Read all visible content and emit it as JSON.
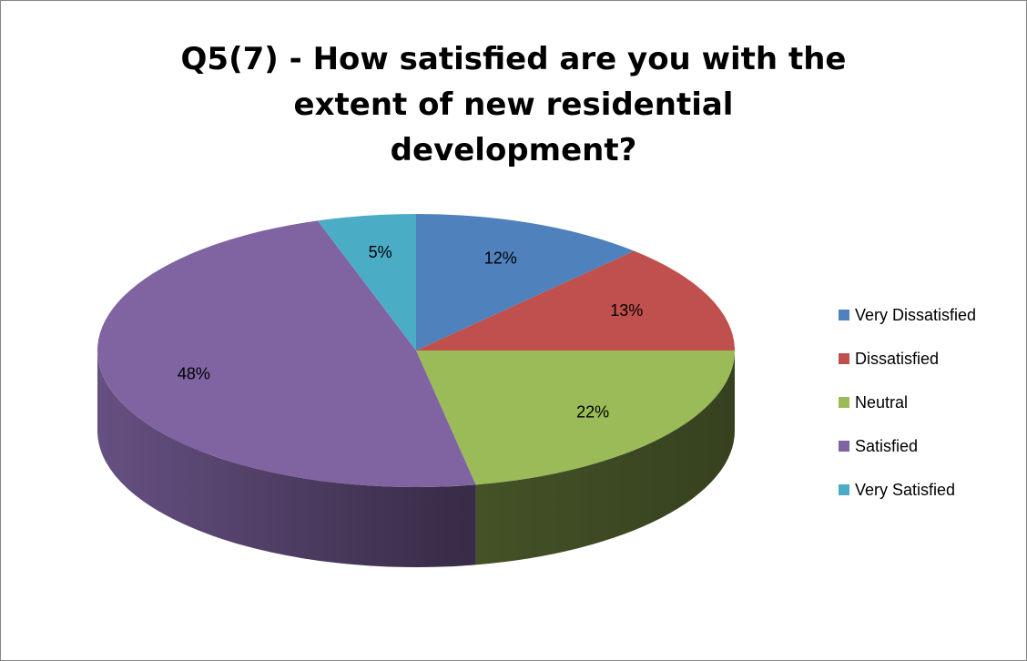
{
  "chart_data": {
    "type": "pie",
    "title": "Q5(7) - How satisfied are you with the extent of new residential development?",
    "categories": [
      "Very Dissatisfied",
      "Dissatisfied",
      "Neutral",
      "Satisfied",
      "Very Satisfied"
    ],
    "values": [
      12,
      13,
      22,
      48,
      5
    ],
    "value_labels": [
      "12%",
      "13%",
      "22%",
      "48%",
      "5%"
    ],
    "colors": [
      "#4f81bd",
      "#c0504d",
      "#9bbb59",
      "#8064a2",
      "#4bacc6"
    ],
    "legend": "right"
  }
}
